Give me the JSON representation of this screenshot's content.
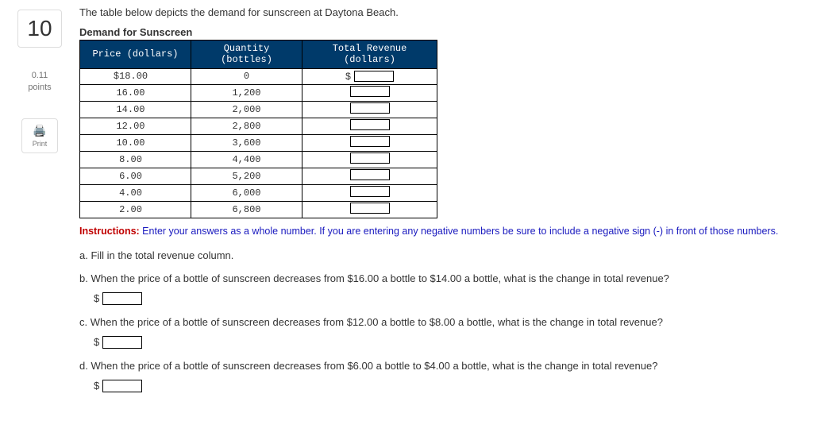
{
  "sidebar": {
    "question_number": "10",
    "points_value": "0.11",
    "points_label": "points",
    "print_label": "Print"
  },
  "intro": "The table below depicts the demand for sunscreen at Daytona Beach.",
  "table": {
    "title": "Demand for Sunscreen",
    "headers": {
      "price": "Price (dollars)",
      "qty_l1": "Quantity",
      "qty_l2": "(bottles)",
      "rev_l1": "Total Revenue",
      "rev_l2": "(dollars)"
    },
    "rows": [
      {
        "price": "$18.00",
        "qty": "0",
        "show_dollar": true
      },
      {
        "price": "16.00",
        "qty": "1,200",
        "show_dollar": false
      },
      {
        "price": "14.00",
        "qty": "2,000",
        "show_dollar": false
      },
      {
        "price": "12.00",
        "qty": "2,800",
        "show_dollar": false
      },
      {
        "price": "10.00",
        "qty": "3,600",
        "show_dollar": false
      },
      {
        "price": "8.00",
        "qty": "4,400",
        "show_dollar": false
      },
      {
        "price": "6.00",
        "qty": "5,200",
        "show_dollar": false
      },
      {
        "price": "4.00",
        "qty": "6,000",
        "show_dollar": false
      },
      {
        "price": "2.00",
        "qty": "6,800",
        "show_dollar": false
      }
    ]
  },
  "instructions": {
    "label": "Instructions:",
    "text": " Enter your answers as a whole number. If you are entering any negative numbers be sure to include a negative sign (-) in front of those numbers."
  },
  "questions": {
    "a": "a. Fill in the total revenue column.",
    "b": "b. When the price of a bottle of sunscreen decreases from $16.00 a bottle to $14.00 a bottle, what is the change in total revenue?",
    "c": "c. When the price of a bottle of sunscreen decreases from $12.00 a bottle to $8.00 a bottle, what is the change in total revenue?",
    "d": "d. When the price of a bottle of sunscreen decreases from $6.00 a bottle to $4.00 a bottle, what is the change in total revenue?"
  },
  "dollar": "$"
}
